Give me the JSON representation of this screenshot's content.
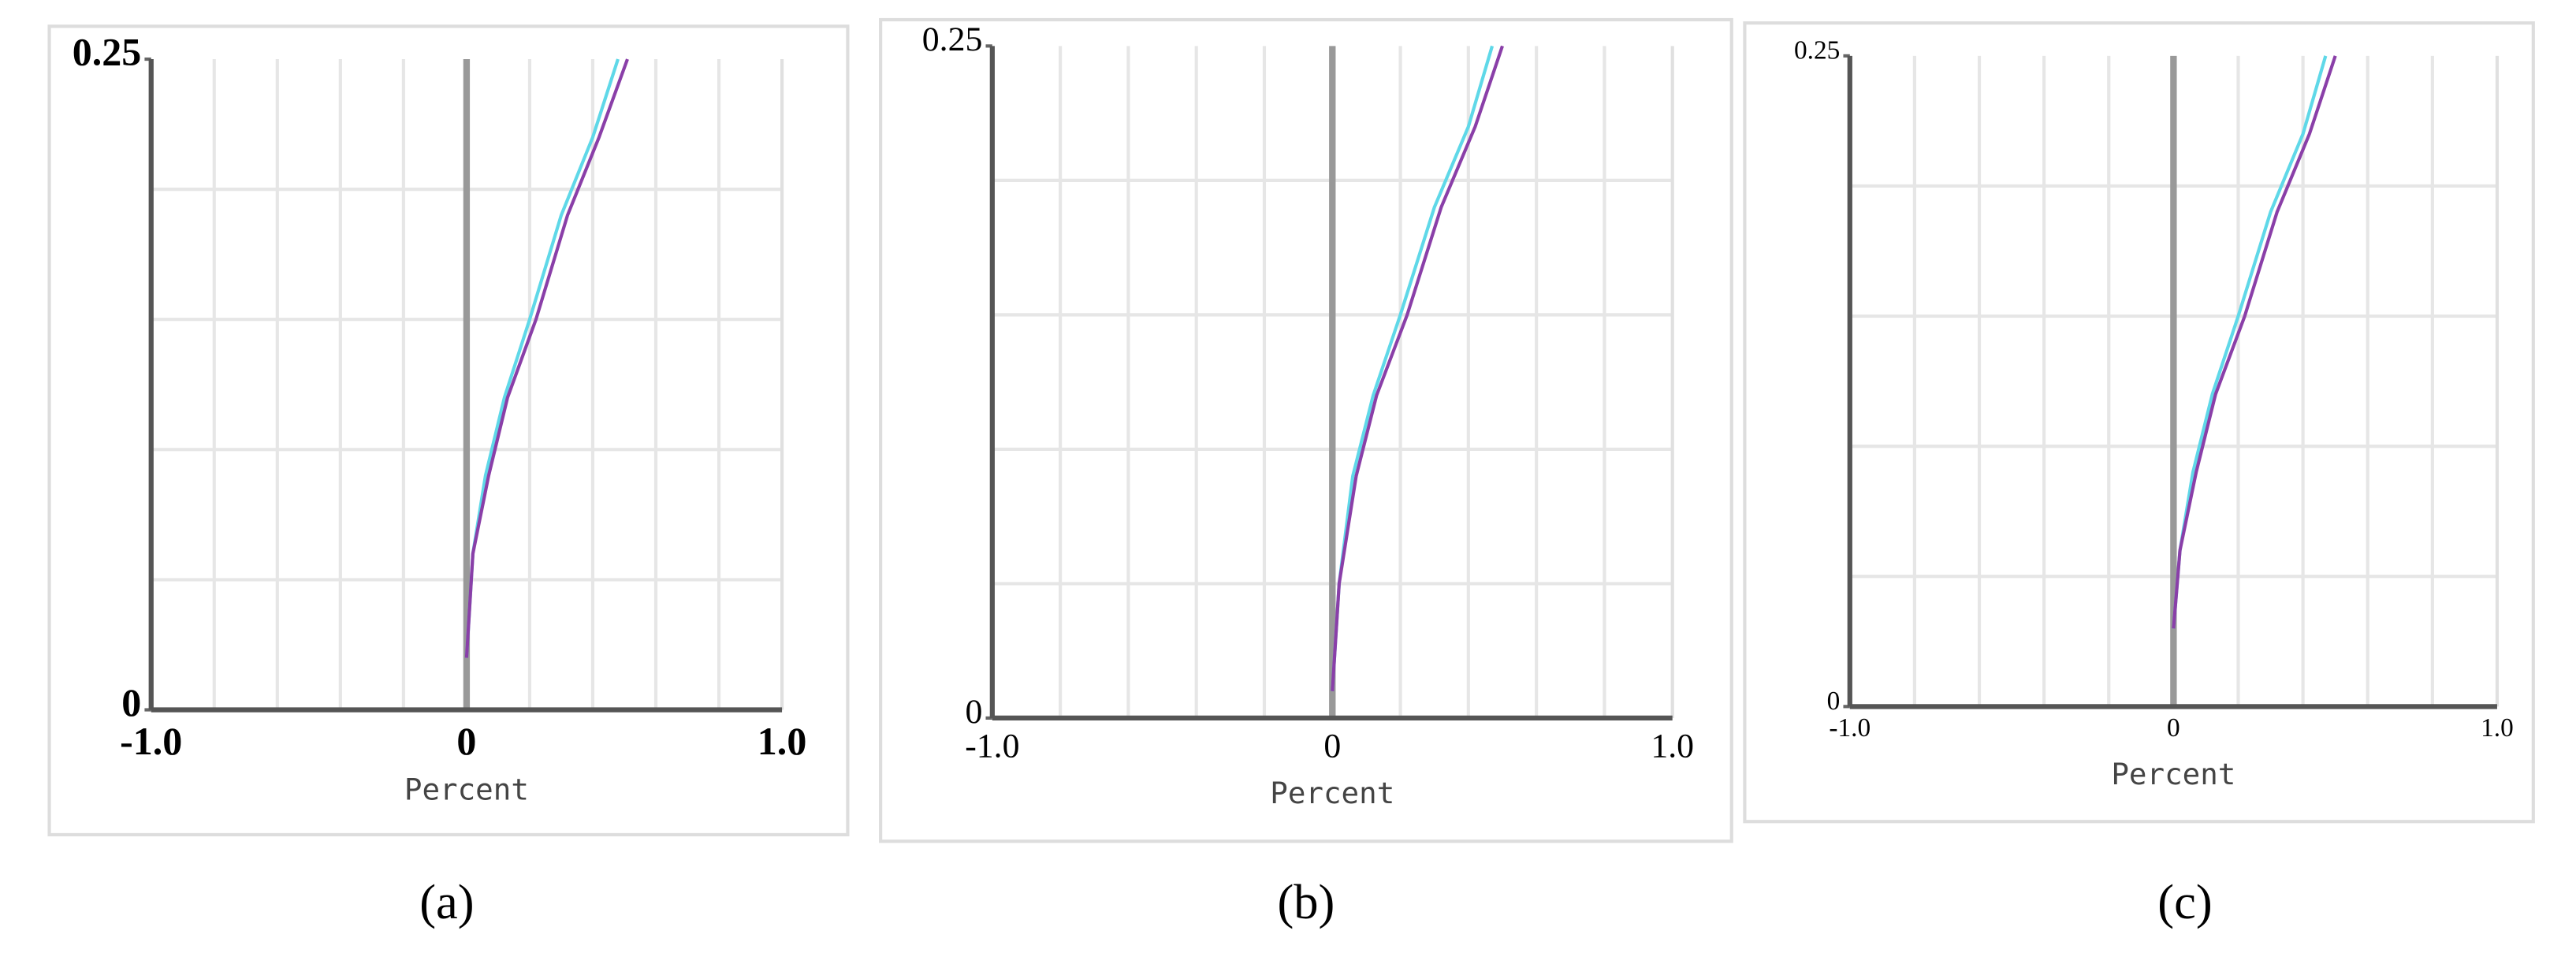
{
  "chart_data": [
    {
      "type": "line",
      "caption": "(a)",
      "x_label": "Percent",
      "xlim": [
        -1,
        1
      ],
      "ylim": [
        0,
        0.25
      ],
      "xticks": [
        {
          "value": -1,
          "label": "-1.0"
        },
        0,
        {
          "value": 1,
          "label": "1.0"
        }
      ],
      "yticks": [
        0,
        0.25
      ],
      "grid_x": [
        -0.8,
        -0.6,
        -0.4,
        -0.2,
        0.2,
        0.4,
        0.6,
        0.8
      ],
      "grid_y": [
        0.05,
        0.1,
        0.15,
        0.2
      ],
      "series": [
        {
          "color": "#5fd8e8",
          "x": [
            0,
            0.02,
            0.06,
            0.12,
            0.2,
            0.3,
            0.4,
            0.48
          ],
          "values": [
            0.02,
            0.06,
            0.09,
            0.12,
            0.15,
            0.19,
            0.22,
            0.25
          ]
        },
        {
          "color": "#8a3fa8",
          "x": [
            0,
            0.02,
            0.07,
            0.13,
            0.22,
            0.32,
            0.42,
            0.51
          ],
          "values": [
            0.02,
            0.06,
            0.09,
            0.12,
            0.15,
            0.19,
            0.22,
            0.25
          ]
        }
      ]
    },
    {
      "type": "line",
      "caption": "(b)",
      "x_label": "Percent",
      "xlim": [
        -1,
        1
      ],
      "ylim": [
        0,
        0.25
      ],
      "xticks": [
        {
          "value": -1,
          "label": "-1.0"
        },
        0,
        {
          "value": 1,
          "label": "1.0"
        }
      ],
      "yticks": [
        0,
        0.25
      ],
      "grid_x": [
        -0.8,
        -0.6,
        -0.4,
        -0.2,
        0.2,
        0.4,
        0.6,
        0.8
      ],
      "grid_y": [
        0.05,
        0.1,
        0.15,
        0.2
      ],
      "series": [
        {
          "color": "#5fd8e8",
          "x": [
            0,
            0.02,
            0.06,
            0.12,
            0.2,
            0.3,
            0.4,
            0.47
          ],
          "values": [
            0.01,
            0.05,
            0.09,
            0.12,
            0.15,
            0.19,
            0.22,
            0.25
          ]
        },
        {
          "color": "#8a3fa8",
          "x": [
            0,
            0.02,
            0.07,
            0.13,
            0.22,
            0.32,
            0.42,
            0.5
          ],
          "values": [
            0.01,
            0.05,
            0.09,
            0.12,
            0.15,
            0.19,
            0.22,
            0.25
          ]
        }
      ]
    },
    {
      "type": "line",
      "caption": "(c)",
      "x_label": "Percent",
      "xlim": [
        -1,
        1
      ],
      "ylim": [
        0,
        0.25
      ],
      "xticks": [
        {
          "value": -1,
          "label": "-1.0"
        },
        0,
        {
          "value": 1,
          "label": "1.0"
        }
      ],
      "yticks": [
        0,
        0.25
      ],
      "grid_x": [
        -0.8,
        -0.6,
        -0.4,
        -0.2,
        0.2,
        0.4,
        0.6,
        0.8
      ],
      "grid_y": [
        0.05,
        0.1,
        0.15,
        0.2
      ],
      "series": [
        {
          "color": "#5fd8e8",
          "x": [
            0,
            0.02,
            0.06,
            0.12,
            0.2,
            0.3,
            0.4,
            0.47
          ],
          "values": [
            0.03,
            0.06,
            0.09,
            0.12,
            0.15,
            0.19,
            0.22,
            0.25
          ]
        },
        {
          "color": "#8a3fa8",
          "x": [
            0,
            0.02,
            0.07,
            0.13,
            0.22,
            0.32,
            0.42,
            0.5
          ],
          "values": [
            0.03,
            0.06,
            0.09,
            0.12,
            0.15,
            0.19,
            0.22,
            0.25
          ]
        }
      ]
    }
  ]
}
